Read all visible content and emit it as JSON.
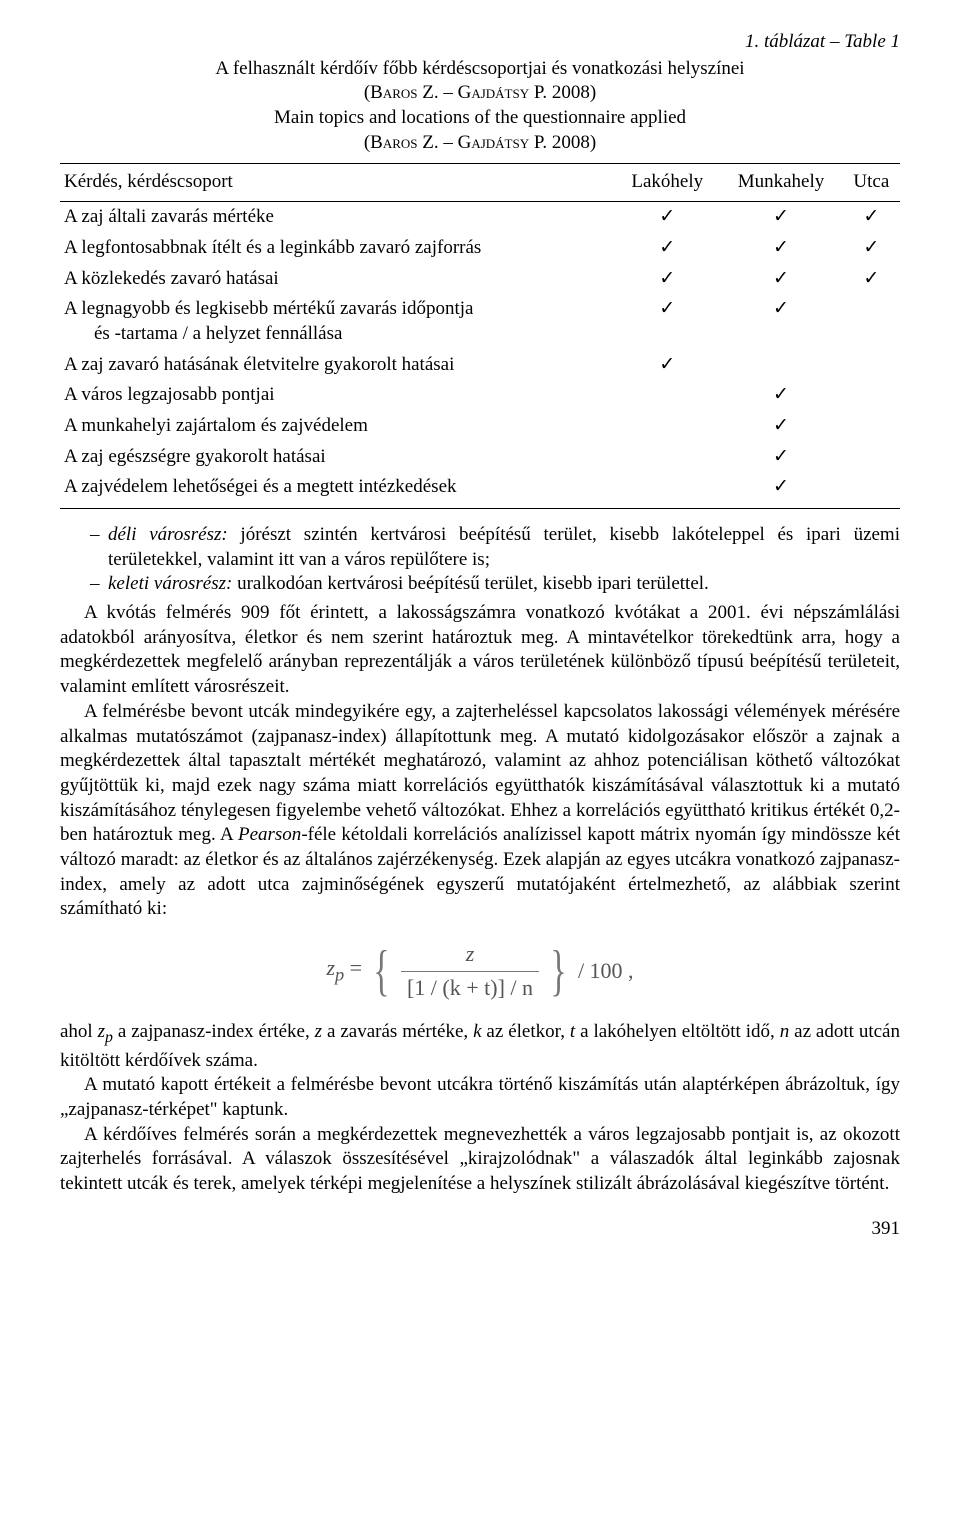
{
  "table_label": "1. táblázat – Table 1",
  "caption": {
    "hu": "A felhasznált kérdőív főbb kérdéscsoportjai és vonatkozási helyszínei",
    "attr1": "(Baros Z. – Gajdátsy P. 2008)",
    "en": "Main topics and locations of the questionnaire applied",
    "attr2": "(Baros Z. – Gajdátsy P. 2008)"
  },
  "headers": {
    "q": "Kérdés, kérdéscsoport",
    "c1": "Lakóhely",
    "c2": "Munkahely",
    "c3": "Utca"
  },
  "checkmark": "✓",
  "rows": [
    {
      "q": "A zaj általi zavarás mértéke",
      "c": [
        true,
        true,
        true
      ]
    },
    {
      "q": "A legfontosabbnak ítélt és a leginkább zavaró zajforrás",
      "c": [
        true,
        true,
        true
      ]
    },
    {
      "q": "A közlekedés zavaró hatásai",
      "c": [
        true,
        true,
        true
      ]
    },
    {
      "q": "A legnagyobb és legkisebb mértékű zavarás időpontja",
      "q2": "és -tartama / a helyzet fennállása",
      "c": [
        true,
        true,
        false
      ]
    },
    {
      "q": "A zaj zavaró hatásának életvitelre gyakorolt hatásai",
      "c": [
        true,
        false,
        false
      ]
    },
    {
      "q": "A város legzajosabb pontjai",
      "c": [
        false,
        true,
        false
      ]
    },
    {
      "q": "A munkahelyi zajártalom és zajvédelem",
      "c": [
        false,
        true,
        false
      ]
    },
    {
      "q": "A zaj egészségre gyakorolt hatásai",
      "c": [
        false,
        true,
        false
      ]
    },
    {
      "q": "A zajvédelem lehetőségei és a megtett intézkedések",
      "c": [
        false,
        true,
        false
      ]
    }
  ],
  "bullets": [
    {
      "lead_italic": "déli városrész:",
      "rest": " jórészt szintén kertvárosi beépítésű terület, kisebb lakóteleppel és ipari üzemi területekkel, valamint itt van a város repülőtere is;"
    },
    {
      "lead_italic": "keleti városrész:",
      "rest": " uralkodóan kertvárosi beépítésű terület, kisebb ipari területtel."
    }
  ],
  "para1": "A kvótás felmérés 909 főt érintett, a lakosságszámra vonatkozó kvótákat a 2001. évi népszámlálási adatokból arányosítva, életkor és nem szerint határoztuk meg. A mintavételkor törekedtünk arra, hogy a megkérdezettek megfelelő arányban reprezentálják a város területének különböző típusú beépítésű területeit, valamint említett városrészeit.",
  "para2_a": "A felmérésbe bevont utcák mindegyikére egy, a zajterheléssel kapcsolatos lakossági vélemények mérésére alkalmas mutatószámot (zajpanasz-index) állapítottunk meg. A mutató kidolgozásakor először a zajnak a megkérdezettek által tapasztalt mértékét meghatározó, valamint az ahhoz potenciálisan köthető változókat gyűjtöttük ki, majd ezek nagy száma miatt korrelációs együtthatók kiszámításával választottuk ki a mutató kiszámításához ténylegesen figyelembe vehető változókat. Ehhez a korrelációs együttható kritikus értékét 0,2-ben határoztuk meg. A ",
  "para2_italic": "Pearson",
  "para2_b": "-féle kétoldali korrelációs analízissel kapott mátrix nyomán így mindössze két változó maradt: az életkor és az általános zajérzékenység. Ezek alapján az egyes utcákra vonatkozó zajpanasz-index, amely az adott utca zajminőségének egyszerű mutatójaként értelmezhető, az alábbiak szerint számítható ki:",
  "formula": {
    "zp": "z",
    "zp_sub": "p",
    "eq": " = ",
    "num": "z",
    "den_open": "[1 / (k + t)] / n",
    "tail": " / 100 ,"
  },
  "para3_a": "ahol ",
  "para3_zp": "z",
  "para3_zp_sub": "p",
  "para3_b": " a zajpanasz-index értéke, ",
  "para3_z": "z",
  "para3_c": " a zavarás mértéke, ",
  "para3_k": "k",
  "para3_d": " az életkor, ",
  "para3_t": "t",
  "para3_e": " a lakóhelyen eltöltött idő, ",
  "para3_n": "n",
  "para3_f": " az adott utcán kitöltött kérdőívek száma.",
  "para4": "A mutató kapott értékeit a felmérésbe bevont utcákra történő kiszámítás után alaptérképen ábrázoltuk, így „zajpanasz-térképet\" kaptunk.",
  "para5": "A kérdőíves felmérés során a megkérdezettek megnevezhették a város legzajosabb pontjait is, az okozott zajterhelés forrásával. A válaszok összesítésével „kirajzolódnak\" a válaszadók által leginkább zajosnak tekintett utcák és terek, amelyek térképi megjelenítése a helyszínek stilizált ábrázolásával kiegészítve történt.",
  "pagenum": "391"
}
